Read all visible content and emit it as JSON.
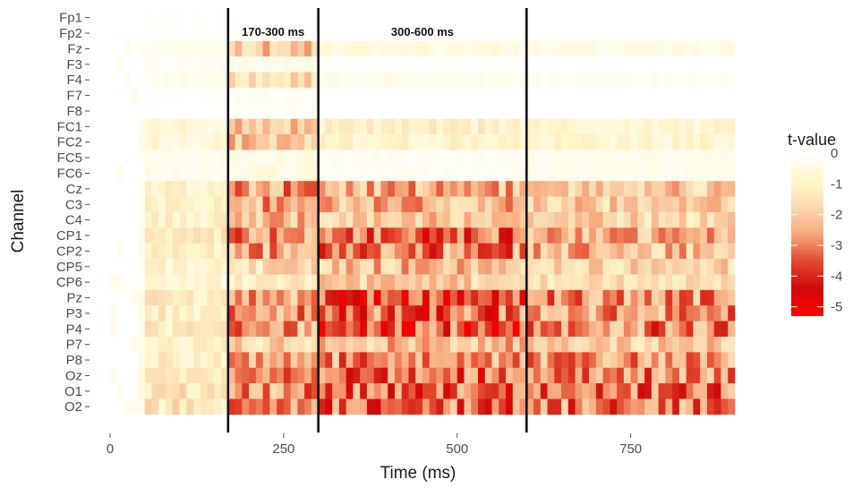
{
  "chart_data": {
    "type": "heatmap",
    "xlabel": "Time (ms)",
    "ylabel": "Channel",
    "xlim": [
      0,
      900
    ],
    "x_ticks": [
      0,
      250,
      500,
      750
    ],
    "x_tick_labels": [
      "0",
      "250",
      "500",
      "750"
    ],
    "time_bin_ms": 10,
    "time_start_ms": 0,
    "time_end_ms": 900,
    "channels": [
      "Fp1",
      "Fp2",
      "Fz",
      "F3",
      "F4",
      "F7",
      "F8",
      "FC1",
      "FC2",
      "FC5",
      "FC6",
      "Cz",
      "C3",
      "C4",
      "CP1",
      "CP2",
      "CP5",
      "CP6",
      "Pz",
      "P3",
      "P4",
      "P7",
      "P8",
      "Oz",
      "O1",
      "O2"
    ],
    "vlines_ms": [
      170,
      300,
      600
    ],
    "annotations": [
      {
        "text": "170-300 ms",
        "x_ms": 235
      },
      {
        "text": "300-600 ms",
        "x_ms": 450
      }
    ],
    "legend": {
      "title": "t-value",
      "ticks": [
        0,
        -1,
        -2,
        -3,
        -4,
        -5
      ],
      "tick_labels": [
        "0",
        "-1",
        "-2",
        "-3",
        "-4",
        "-5"
      ],
      "range": [
        -5.3,
        0
      ],
      "colors": [
        "#ffffff",
        "#fff7cc",
        "#fcd9b0",
        "#f6a77c",
        "#e2482d",
        "#cf0a0a",
        "#ff0000"
      ]
    },
    "channel_window_means": [
      [
        -0.1,
        -0.1,
        0.0,
        0.0,
        0.0
      ],
      [
        -0.1,
        -0.1,
        -0.1,
        0.0,
        0.0
      ],
      [
        -0.2,
        -0.3,
        -2.0,
        -0.5,
        -0.4
      ],
      [
        -0.1,
        -0.2,
        -0.4,
        -0.1,
        0.0
      ],
      [
        -0.1,
        -0.3,
        -1.8,
        -0.3,
        -0.2
      ],
      [
        -0.1,
        -0.1,
        -0.2,
        0.0,
        0.0
      ],
      [
        0.0,
        0.0,
        -0.2,
        0.0,
        0.0
      ],
      [
        -0.2,
        -0.7,
        -2.1,
        -1.0,
        -0.8
      ],
      [
        -0.2,
        -0.7,
        -2.1,
        -0.9,
        -0.8
      ],
      [
        -0.1,
        -0.3,
        -0.5,
        -0.2,
        -0.3
      ],
      [
        -0.1,
        -0.3,
        -0.5,
        -0.2,
        -0.3
      ],
      [
        -0.2,
        -1.0,
        -2.7,
        -2.4,
        -2.0
      ],
      [
        -0.2,
        -1.0,
        -2.5,
        -2.3,
        -1.9
      ],
      [
        -0.2,
        -1.0,
        -2.3,
        -2.0,
        -1.8
      ],
      [
        -0.3,
        -1.2,
        -2.8,
        -3.2,
        -2.5
      ],
      [
        -0.3,
        -1.2,
        -2.6,
        -3.0,
        -2.3
      ],
      [
        -0.2,
        -0.9,
        -1.6,
        -2.2,
        -1.8
      ],
      [
        -0.2,
        -0.8,
        -1.2,
        -1.9,
        -1.5
      ],
      [
        -0.3,
        -1.2,
        -2.8,
        -3.6,
        -2.8
      ],
      [
        -0.3,
        -1.2,
        -2.7,
        -3.4,
        -2.8
      ],
      [
        -0.3,
        -1.3,
        -2.8,
        -3.7,
        -3.0
      ],
      [
        -0.3,
        -1.1,
        -1.8,
        -2.2,
        -2.0
      ],
      [
        -0.3,
        -1.2,
        -2.3,
        -2.8,
        -2.7
      ],
      [
        -0.4,
        -1.4,
        -2.9,
        -3.3,
        -3.0
      ],
      [
        -0.4,
        -1.4,
        -2.8,
        -3.4,
        -3.1
      ],
      [
        -0.4,
        -1.4,
        -2.9,
        -3.2,
        -3.0
      ]
    ],
    "window_edges_ms": [
      0,
      50,
      170,
      300,
      600,
      900
    ]
  }
}
